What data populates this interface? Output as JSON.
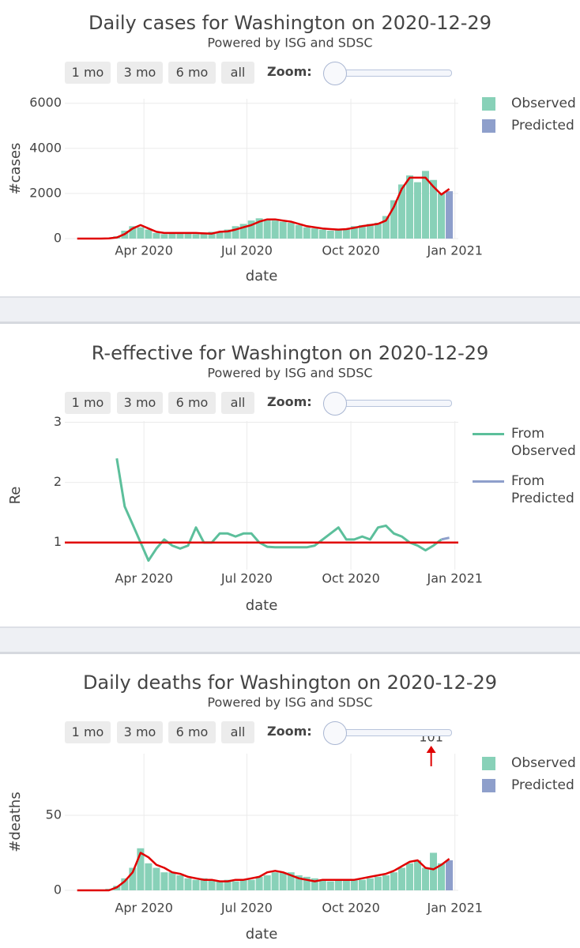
{
  "chart_data": [
    {
      "type": "bar",
      "title": "Daily cases for Washington on 2020-12-29",
      "subtitle": "Powered by ISG and SDSC",
      "buttons": [
        "1 mo",
        "3 mo",
        "6 mo",
        "all"
      ],
      "zoom_label": "Zoom:",
      "x_label": "date",
      "y_label": "#cases",
      "grid": true,
      "xlim": [
        "2020-01-22",
        "2021-01-04"
      ],
      "xticks": [
        {
          "value": "2020-04-01",
          "label": "Apr 2020"
        },
        {
          "value": "2020-07-01",
          "label": "Jul 2020"
        },
        {
          "value": "2020-10-01",
          "label": "Oct 2020"
        },
        {
          "value": "2021-01-01",
          "label": "Jan 2021"
        }
      ],
      "ylim": [
        0,
        6200
      ],
      "yticks": [
        0,
        2000,
        4000,
        6000
      ],
      "x": [
        "2020-02-02",
        "2020-02-09",
        "2020-02-16",
        "2020-02-23",
        "2020-03-01",
        "2020-03-08",
        "2020-03-15",
        "2020-03-22",
        "2020-03-29",
        "2020-04-05",
        "2020-04-12",
        "2020-04-19",
        "2020-04-26",
        "2020-05-03",
        "2020-05-10",
        "2020-05-17",
        "2020-05-24",
        "2020-05-31",
        "2020-06-07",
        "2020-06-14",
        "2020-06-21",
        "2020-06-28",
        "2020-07-05",
        "2020-07-12",
        "2020-07-19",
        "2020-07-26",
        "2020-08-02",
        "2020-08-09",
        "2020-08-16",
        "2020-08-23",
        "2020-08-30",
        "2020-09-06",
        "2020-09-13",
        "2020-09-20",
        "2020-09-27",
        "2020-10-04",
        "2020-10-11",
        "2020-10-18",
        "2020-10-25",
        "2020-11-01",
        "2020-11-08",
        "2020-11-15",
        "2020-11-22",
        "2020-11-29",
        "2020-12-06",
        "2020-12-13",
        "2020-12-20",
        "2020-12-27"
      ],
      "series": [
        {
          "name": "Observed",
          "type": "bar",
          "color": "#88d1b8",
          "values": [
            0,
            0,
            0,
            5,
            20,
            100,
            350,
            550,
            500,
            400,
            250,
            200,
            250,
            250,
            220,
            200,
            250,
            300,
            300,
            400,
            550,
            650,
            800,
            900,
            850,
            800,
            750,
            700,
            600,
            500,
            450,
            400,
            350,
            400,
            450,
            550,
            600,
            650,
            700,
            1000,
            1700,
            2400,
            2800,
            2500,
            3000,
            2600,
            2000,
            null
          ]
        },
        {
          "name": "Predicted",
          "type": "bar",
          "color": "#8e9fcb",
          "values": [
            null,
            null,
            null,
            null,
            null,
            null,
            null,
            null,
            null,
            null,
            null,
            null,
            null,
            null,
            null,
            null,
            null,
            null,
            null,
            null,
            null,
            null,
            null,
            null,
            null,
            null,
            null,
            null,
            null,
            null,
            null,
            null,
            null,
            null,
            null,
            null,
            null,
            null,
            null,
            null,
            null,
            null,
            null,
            null,
            null,
            null,
            null,
            2100
          ]
        },
        {
          "type": "line",
          "color": "#e00000",
          "values": [
            0,
            0,
            0,
            0,
            10,
            50,
            200,
            450,
            600,
            450,
            300,
            250,
            250,
            250,
            250,
            250,
            230,
            220,
            300,
            320,
            400,
            500,
            600,
            750,
            850,
            850,
            800,
            750,
            650,
            550,
            500,
            450,
            420,
            400,
            420,
            480,
            550,
            600,
            650,
            800,
            1400,
            2200,
            2700,
            2700,
            2700,
            2300,
            1950,
            2200
          ]
        }
      ]
    },
    {
      "type": "line",
      "title": "R-effective for Washington on 2020-12-29",
      "subtitle": "Powered by ISG and SDSC",
      "buttons": [
        "1 mo",
        "3 mo",
        "6 mo",
        "all"
      ],
      "zoom_label": "Zoom:",
      "x_label": "date",
      "y_label": "Re",
      "grid": true,
      "xlim": [
        "2020-01-22",
        "2021-01-04"
      ],
      "xticks": [
        {
          "value": "2020-04-01",
          "label": "Apr 2020"
        },
        {
          "value": "2020-07-01",
          "label": "Jul 2020"
        },
        {
          "value": "2020-10-01",
          "label": "Oct 2020"
        },
        {
          "value": "2021-01-01",
          "label": "Jan 2021"
        }
      ],
      "ylim": [
        0.55,
        3.02
      ],
      "yticks": [
        1,
        2,
        3
      ],
      "hline": 1,
      "hline_color": "#e00000",
      "x": [
        "2020-02-02",
        "2020-02-09",
        "2020-02-16",
        "2020-02-23",
        "2020-03-01",
        "2020-03-08",
        "2020-03-15",
        "2020-03-22",
        "2020-03-29",
        "2020-04-05",
        "2020-04-12",
        "2020-04-19",
        "2020-04-26",
        "2020-05-03",
        "2020-05-10",
        "2020-05-17",
        "2020-05-24",
        "2020-05-31",
        "2020-06-07",
        "2020-06-14",
        "2020-06-21",
        "2020-06-28",
        "2020-07-05",
        "2020-07-12",
        "2020-07-19",
        "2020-07-26",
        "2020-08-02",
        "2020-08-09",
        "2020-08-16",
        "2020-08-23",
        "2020-08-30",
        "2020-09-06",
        "2020-09-13",
        "2020-09-20",
        "2020-09-27",
        "2020-10-04",
        "2020-10-11",
        "2020-10-18",
        "2020-10-25",
        "2020-11-01",
        "2020-11-08",
        "2020-11-15",
        "2020-11-22",
        "2020-11-29",
        "2020-12-06",
        "2020-12-13",
        "2020-12-20",
        "2020-12-27"
      ],
      "series": [
        {
          "name": "From Observed",
          "type": "line",
          "color": "#5cbf9b",
          "values": [
            null,
            null,
            null,
            null,
            null,
            2.4,
            1.6,
            1.3,
            1.0,
            0.7,
            0.9,
            1.05,
            0.95,
            0.9,
            0.95,
            1.25,
            1.0,
            1.0,
            1.15,
            1.15,
            1.1,
            1.15,
            1.15,
            1.0,
            0.93,
            0.92,
            0.92,
            0.92,
            0.92,
            0.92,
            0.95,
            1.05,
            1.15,
            1.25,
            1.05,
            1.05,
            1.1,
            1.05,
            1.25,
            1.28,
            1.15,
            1.1,
            1.0,
            0.95,
            0.87,
            0.95,
            1.05,
            null
          ]
        },
        {
          "name": "From Predicted",
          "type": "line",
          "color": "#8e9fcb",
          "values": [
            null,
            null,
            null,
            null,
            null,
            null,
            null,
            null,
            null,
            null,
            null,
            null,
            null,
            null,
            null,
            null,
            null,
            null,
            null,
            null,
            null,
            null,
            null,
            null,
            null,
            null,
            null,
            null,
            null,
            null,
            null,
            null,
            null,
            null,
            null,
            null,
            null,
            null,
            null,
            null,
            null,
            null,
            null,
            null,
            null,
            null,
            1.05,
            1.08
          ]
        }
      ]
    },
    {
      "type": "bar",
      "title": "Daily deaths for Washington on 2020-12-29",
      "subtitle": "Powered by ISG and SDSC",
      "buttons": [
        "1 mo",
        "3 mo",
        "6 mo",
        "all"
      ],
      "zoom_label": "Zoom:",
      "x_label": "date",
      "y_label": "#deaths",
      "grid": true,
      "xlim": [
        "2020-01-22",
        "2021-01-04"
      ],
      "xticks": [
        {
          "value": "2020-04-01",
          "label": "Apr 2020"
        },
        {
          "value": "2020-07-01",
          "label": "Jul 2020"
        },
        {
          "value": "2020-10-01",
          "label": "Oct 2020"
        },
        {
          "value": "2021-01-01",
          "label": "Jan 2021"
        }
      ],
      "ylim": [
        0,
        91
      ],
      "yticks": [
        0,
        50
      ],
      "annotations": [
        {
          "x": "2020-12-11",
          "y": 101,
          "color": "#e00000"
        }
      ],
      "x": [
        "2020-02-02",
        "2020-02-09",
        "2020-02-16",
        "2020-02-23",
        "2020-03-01",
        "2020-03-08",
        "2020-03-15",
        "2020-03-22",
        "2020-03-29",
        "2020-04-05",
        "2020-04-12",
        "2020-04-19",
        "2020-04-26",
        "2020-05-03",
        "2020-05-10",
        "2020-05-17",
        "2020-05-24",
        "2020-05-31",
        "2020-06-07",
        "2020-06-14",
        "2020-06-21",
        "2020-06-28",
        "2020-07-05",
        "2020-07-12",
        "2020-07-19",
        "2020-07-26",
        "2020-08-02",
        "2020-08-09",
        "2020-08-16",
        "2020-08-23",
        "2020-08-30",
        "2020-09-06",
        "2020-09-13",
        "2020-09-20",
        "2020-09-27",
        "2020-10-04",
        "2020-10-11",
        "2020-10-18",
        "2020-10-25",
        "2020-11-01",
        "2020-11-08",
        "2020-11-15",
        "2020-11-22",
        "2020-11-29",
        "2020-12-06",
        "2020-12-13",
        "2020-12-20",
        "2020-12-27"
      ],
      "series": [
        {
          "name": "Observed",
          "type": "bar",
          "color": "#88d1b8",
          "values": [
            0,
            0,
            0,
            0,
            1,
            3,
            8,
            15,
            28,
            18,
            15,
            12,
            12,
            10,
            8,
            7,
            8,
            7,
            6,
            7,
            6,
            7,
            7,
            9,
            10,
            12,
            12,
            12,
            10,
            9,
            8,
            7,
            6,
            7,
            7,
            7,
            7,
            8,
            9,
            10,
            12,
            15,
            18,
            20,
            15,
            25,
            18,
            null
          ]
        },
        {
          "name": "Predicted",
          "type": "bar",
          "color": "#8e9fcb",
          "values": [
            null,
            null,
            null,
            null,
            null,
            null,
            null,
            null,
            null,
            null,
            null,
            null,
            null,
            null,
            null,
            null,
            null,
            null,
            null,
            null,
            null,
            null,
            null,
            null,
            null,
            null,
            null,
            null,
            null,
            null,
            null,
            null,
            null,
            null,
            null,
            null,
            null,
            null,
            null,
            null,
            null,
            null,
            null,
            null,
            null,
            null,
            null,
            20
          ]
        },
        {
          "type": "line",
          "color": "#e00000",
          "values": [
            0,
            0,
            0,
            0,
            0,
            2,
            6,
            12,
            25,
            22,
            17,
            15,
            12,
            11,
            9,
            8,
            7,
            7,
            6,
            6,
            7,
            7,
            8,
            9,
            12,
            13,
            12,
            10,
            8,
            7,
            6,
            7,
            7,
            7,
            7,
            7,
            8,
            9,
            10,
            11,
            13,
            16,
            19,
            20,
            15,
            14,
            17,
            21
          ]
        }
      ]
    }
  ]
}
